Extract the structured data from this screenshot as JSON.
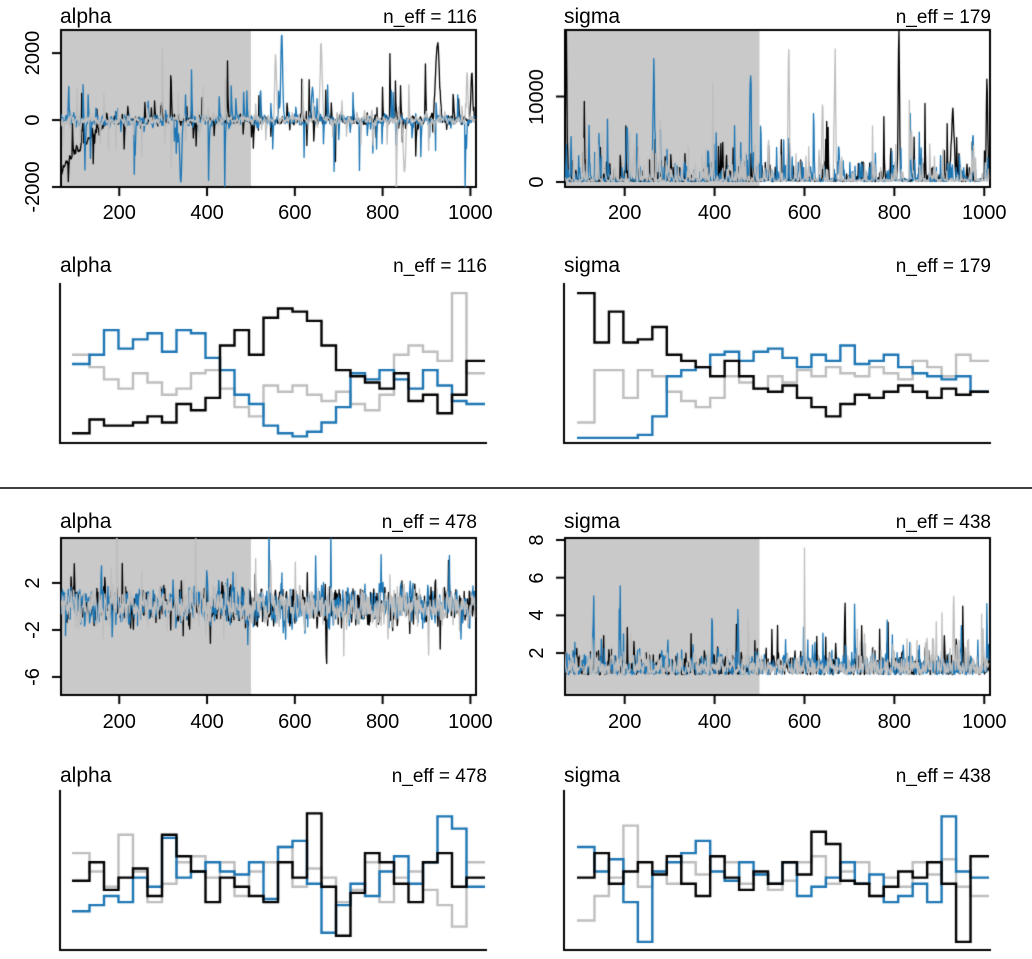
{
  "figure": {
    "background": "#ffffff",
    "divider_color": "#3f3f3f",
    "warmup_shade_color": "#c9c9c9",
    "chain_colors": {
      "chain-1": "#000000",
      "chain-2": "#1d76b4",
      "chain-3": "#bebebe"
    },
    "sections": 2,
    "description_visible_text_only": true
  },
  "chart_data": [
    {
      "id": "trace-alpha-poor",
      "type": "line",
      "plot_type": "trace",
      "title": "alpha",
      "n_eff": 116,
      "n_eff_label": "n_eff = 116",
      "x_ticks": [
        200,
        400,
        600,
        800,
        1000
      ],
      "y_ticks": [
        {
          "v": -2000,
          "label": "-2000"
        },
        {
          "v": 0,
          "label": "0"
        },
        {
          "v": 2000,
          "label": "2000"
        }
      ],
      "xlim": [
        65,
        1015
      ],
      "ylim": [
        -2030,
        2720
      ],
      "warmup_end": 500,
      "chains": [
        {
          "name": "chain-1",
          "color": "#000000",
          "seed": 101,
          "sim": {
            "ar": 0.45,
            "base": 60,
            "spike_p": 0.12,
            "spike_scale": 420
          },
          "ramp": {
            "from": -1450,
            "until": 170
          },
          "events": [
            {
              "t": 925,
              "amp": 2300,
              "w": 9
            },
            {
              "t": 1003,
              "amp": 1400,
              "w": 4
            }
          ]
        },
        {
          "name": "chain-2",
          "color": "#1d76b4",
          "seed": 102,
          "sim": {
            "ar": 0.45,
            "base": 70,
            "spike_p": 0.14,
            "spike_scale": 430
          },
          "events": [
            {
              "t": 570,
              "amp": 2600,
              "w": 4
            },
            {
              "t": 340,
              "amp": -1800,
              "w": 5
            },
            {
              "t": 640,
              "amp": 1100,
              "w": 4
            }
          ]
        },
        {
          "name": "chain-3",
          "color": "#bebebe",
          "seed": 103,
          "sim": {
            "ar": 0.45,
            "base": 60,
            "spike_p": 0.12,
            "spike_scale": 420
          },
          "events": [
            {
              "t": 556,
              "amp": 1900,
              "w": 4
            },
            {
              "t": 660,
              "amp": 1950,
              "w": 5
            },
            {
              "t": 850,
              "amp": -1750,
              "w": 5
            },
            {
              "t": 992,
              "amp": 1500,
              "w": 4
            }
          ]
        }
      ]
    },
    {
      "id": "trace-sigma-poor",
      "type": "line",
      "plot_type": "trace",
      "title": "sigma",
      "n_eff": 179,
      "n_eff_label": "n_eff = 179",
      "x_ticks": [
        200,
        400,
        600,
        800,
        1000
      ],
      "y_ticks": [
        {
          "v": 0,
          "label": "0"
        },
        {
          "v": 10000,
          "label": "10000"
        }
      ],
      "xlim": [
        65,
        1015
      ],
      "ylim": [
        -700,
        17900
      ],
      "warmup_end": 500,
      "chains": [
        {
          "name": "chain-1",
          "color": "#000000",
          "seed": 201,
          "sim": {
            "positive": true,
            "floor": 60,
            "base": 150,
            "spike_p": 0.25,
            "spike_scale": 1500
          },
          "events": [
            {
              "t": 70,
              "amp": 16800,
              "w": 3
            },
            {
              "t": 810,
              "amp": 17300,
              "w": 3
            },
            {
              "t": 930,
              "amp": 8300,
              "w": 5
            },
            {
              "t": 1006,
              "amp": 12000,
              "w": 3
            }
          ]
        },
        {
          "name": "chain-2",
          "color": "#1d76b4",
          "seed": 202,
          "sim": {
            "positive": true,
            "floor": 60,
            "base": 150,
            "spike_p": 0.25,
            "spike_scale": 1500
          },
          "events": [
            {
              "t": 265,
              "amp": 12000,
              "w": 3
            },
            {
              "t": 480,
              "amp": 12400,
              "w": 3
            },
            {
              "t": 205,
              "amp": 6300,
              "w": 4
            }
          ]
        },
        {
          "name": "chain-3",
          "color": "#bebebe",
          "seed": 203,
          "sim": {
            "positive": true,
            "floor": 60,
            "base": 150,
            "spike_p": 0.25,
            "spike_scale": 1500
          },
          "events": [
            {
              "t": 565,
              "amp": 15700,
              "w": 3
            },
            {
              "t": 668,
              "amp": 13200,
              "w": 3
            },
            {
              "t": 640,
              "amp": 8800,
              "w": 3
            },
            {
              "t": 838,
              "amp": 6000,
              "w": 3
            }
          ]
        }
      ]
    },
    {
      "id": "trank-alpha-poor",
      "type": "step-histogram",
      "plot_type": "trank",
      "title": "alpha",
      "n_eff": 116,
      "n_eff_label": "n_eff = 116",
      "bins": 28,
      "chains": [
        {
          "name": "chain-1",
          "color": "#000000",
          "heights": [
            0.05,
            0.14,
            0.1,
            0.1,
            0.12,
            0.16,
            0.12,
            0.24,
            0.2,
            0.28,
            0.62,
            0.72,
            0.56,
            0.8,
            0.86,
            0.84,
            0.78,
            0.62,
            0.46,
            0.42,
            0.38,
            0.34,
            0.44,
            0.26,
            0.3,
            0.18,
            0.3,
            0.52
          ]
        },
        {
          "name": "chain-2",
          "color": "#1d76b4",
          "heights": [
            0.5,
            0.56,
            0.72,
            0.6,
            0.66,
            0.7,
            0.58,
            0.72,
            0.7,
            0.54,
            0.46,
            0.3,
            0.24,
            0.1,
            0.05,
            0.03,
            0.06,
            0.12,
            0.22,
            0.44,
            0.4,
            0.46,
            0.4,
            0.34,
            0.46,
            0.36,
            0.26,
            0.24
          ]
        },
        {
          "name": "chain-3",
          "color": "#bebebe",
          "heights": [
            0.56,
            0.48,
            0.4,
            0.34,
            0.44,
            0.38,
            0.3,
            0.34,
            0.44,
            0.46,
            0.34,
            0.22,
            0.16,
            0.36,
            0.32,
            0.36,
            0.3,
            0.26,
            0.32,
            0.24,
            0.2,
            0.3,
            0.56,
            0.62,
            0.58,
            0.52,
            0.96,
            0.44
          ]
        }
      ]
    },
    {
      "id": "trank-sigma-poor",
      "type": "step-histogram",
      "plot_type": "trank",
      "title": "sigma",
      "n_eff": 179,
      "n_eff_label": "n_eff = 179",
      "bins": 28,
      "chains": [
        {
          "name": "chain-1",
          "color": "#000000",
          "heights": [
            0.96,
            0.64,
            0.84,
            0.64,
            0.66,
            0.74,
            0.56,
            0.52,
            0.48,
            0.42,
            0.52,
            0.42,
            0.34,
            0.32,
            0.36,
            0.28,
            0.22,
            0.16,
            0.24,
            0.3,
            0.28,
            0.32,
            0.36,
            0.32,
            0.28,
            0.34,
            0.3,
            0.32
          ]
        },
        {
          "name": "chain-2",
          "color": "#1d76b4",
          "heights": [
            0.02,
            0.02,
            0.02,
            0.02,
            0.04,
            0.16,
            0.42,
            0.46,
            0.48,
            0.56,
            0.58,
            0.52,
            0.58,
            0.6,
            0.54,
            0.48,
            0.56,
            0.52,
            0.62,
            0.5,
            0.52,
            0.56,
            0.48,
            0.44,
            0.42,
            0.4,
            0.42,
            0.32
          ]
        },
        {
          "name": "chain-3",
          "color": "#bebebe",
          "heights": [
            0.12,
            0.46,
            0.46,
            0.28,
            0.46,
            0.42,
            0.32,
            0.26,
            0.22,
            0.28,
            0.42,
            0.38,
            0.34,
            0.42,
            0.38,
            0.46,
            0.42,
            0.48,
            0.44,
            0.42,
            0.48,
            0.44,
            0.4,
            0.52,
            0.48,
            0.42,
            0.56,
            0.52
          ]
        }
      ]
    },
    {
      "id": "trace-alpha-good",
      "type": "line",
      "plot_type": "trace",
      "title": "alpha",
      "n_eff": 478,
      "n_eff_label": "n_eff = 478",
      "x_ticks": [
        200,
        400,
        600,
        800,
        1000
      ],
      "y_ticks": [
        {
          "v": -6,
          "label": "-6"
        },
        {
          "v": -2,
          "label": "-2"
        },
        {
          "v": 2,
          "label": "2"
        }
      ],
      "xlim": [
        65,
        1015
      ],
      "ylim": [
        -7.62,
        5.91
      ],
      "warmup_end": 500,
      "chains": [
        {
          "name": "chain-1",
          "color": "#000000",
          "seed": 501,
          "sim": {
            "ar": 0.3,
            "base": 0.75,
            "spike_p": 0.1,
            "spike_scale": 1.2
          },
          "events": [
            {
              "t": 672,
              "amp": -5.6,
              "w": 2
            }
          ]
        },
        {
          "name": "chain-2",
          "color": "#1d76b4",
          "seed": 502,
          "sim": {
            "ar": 0.3,
            "base": 0.75,
            "spike_p": 0.1,
            "spike_scale": 1.2
          },
          "events": [
            {
              "t": 160,
              "amp": 2.6,
              "w": 2
            },
            {
              "t": 952,
              "amp": 2.8,
              "w": 2
            }
          ]
        },
        {
          "name": "chain-3",
          "color": "#bebebe",
          "seed": 503,
          "sim": {
            "ar": 0.3,
            "base": 0.75,
            "spike_p": 0.1,
            "spike_scale": 1.2
          },
          "events": [
            {
              "t": 545,
              "amp": 2.9,
              "w": 2
            },
            {
              "t": 905,
              "amp": -3.0,
              "w": 2
            }
          ]
        }
      ]
    },
    {
      "id": "trace-sigma-good",
      "type": "line",
      "plot_type": "trace",
      "title": "sigma",
      "n_eff": 438,
      "n_eff_label": "n_eff = 438",
      "x_ticks": [
        200,
        400,
        600,
        800,
        1000
      ],
      "y_ticks": [
        {
          "v": 2,
          "label": "2"
        },
        {
          "v": 4,
          "label": "4"
        },
        {
          "v": 6,
          "label": "6"
        },
        {
          "v": 8,
          "label": "8"
        }
      ],
      "xlim": [
        65,
        1015
      ],
      "ylim": [
        -0.28,
        8.16
      ],
      "warmup_end": 500,
      "chains": [
        {
          "name": "chain-1",
          "color": "#000000",
          "seed": 601,
          "sim": {
            "positive": true,
            "floor": 0.85,
            "base": 0.45,
            "spike_p": 0.12,
            "spike_scale": 0.85
          },
          "events": [
            {
              "t": 690,
              "amp": 3.4,
              "w": 2
            }
          ]
        },
        {
          "name": "chain-2",
          "color": "#1d76b4",
          "seed": 602,
          "sim": {
            "positive": true,
            "floor": 0.85,
            "base": 0.45,
            "spike_p": 0.12,
            "spike_scale": 0.85
          },
          "events": [
            {
              "t": 452,
              "amp": 3.2,
              "w": 2
            },
            {
              "t": 130,
              "amp": 2.6,
              "w": 2
            }
          ]
        },
        {
          "name": "chain-3",
          "color": "#bebebe",
          "seed": 603,
          "sim": {
            "positive": true,
            "floor": 0.85,
            "base": 0.45,
            "spike_p": 0.12,
            "spike_scale": 0.85
          },
          "events": [
            {
              "t": 932,
              "amp": 3.6,
              "w": 2
            }
          ]
        }
      ]
    },
    {
      "id": "trank-alpha-good",
      "type": "step-histogram",
      "plot_type": "trank",
      "title": "alpha",
      "n_eff": 478,
      "n_eff_label": "n_eff = 478",
      "bins": 28,
      "chains": [
        {
          "name": "chain-1",
          "color": "#000000",
          "heights": [
            0.44,
            0.56,
            0.38,
            0.46,
            0.52,
            0.34,
            0.74,
            0.6,
            0.5,
            0.3,
            0.46,
            0.4,
            0.34,
            0.3,
            0.56,
            0.46,
            0.88,
            0.4,
            0.08,
            0.36,
            0.62,
            0.56,
            0.42,
            0.3,
            0.56,
            0.62,
            0.4,
            0.46
          ]
        },
        {
          "name": "chain-2",
          "color": "#1d76b4",
          "heights": [
            0.24,
            0.28,
            0.34,
            0.3,
            0.46,
            0.4,
            0.72,
            0.46,
            0.5,
            0.56,
            0.5,
            0.48,
            0.56,
            0.32,
            0.66,
            0.7,
            0.42,
            0.1,
            0.28,
            0.42,
            0.34,
            0.5,
            0.6,
            0.42,
            0.56,
            0.86,
            0.78,
            0.4
          ]
        },
        {
          "name": "chain-3",
          "color": "#bebebe",
          "heights": [
            0.62,
            0.5,
            0.4,
            0.74,
            0.5,
            0.3,
            0.42,
            0.56,
            0.6,
            0.46,
            0.56,
            0.34,
            0.5,
            0.56,
            0.66,
            0.4,
            0.52,
            0.46,
            0.3,
            0.38,
            0.56,
            0.3,
            0.46,
            0.5,
            0.38,
            0.28,
            0.14,
            0.56
          ]
        }
      ]
    },
    {
      "id": "trank-sigma-good",
      "type": "step-histogram",
      "plot_type": "trank",
      "title": "sigma",
      "n_eff": 438,
      "n_eff_label": "n_eff = 438",
      "bins": 28,
      "chains": [
        {
          "name": "chain-1",
          "color": "#000000",
          "heights": [
            0.46,
            0.62,
            0.42,
            0.5,
            0.56,
            0.48,
            0.6,
            0.42,
            0.34,
            0.6,
            0.46,
            0.38,
            0.5,
            0.42,
            0.56,
            0.48,
            0.76,
            0.68,
            0.44,
            0.42,
            0.34,
            0.4,
            0.5,
            0.46,
            0.56,
            0.42,
            0.04,
            0.6
          ]
        },
        {
          "name": "chain-2",
          "color": "#1d76b4",
          "heights": [
            0.66,
            0.5,
            0.58,
            0.3,
            0.04,
            0.5,
            0.56,
            0.62,
            0.7,
            0.5,
            0.44,
            0.56,
            0.48,
            0.42,
            0.56,
            0.34,
            0.4,
            0.46,
            0.56,
            0.42,
            0.48,
            0.3,
            0.34,
            0.42,
            0.3,
            0.86,
            0.5,
            0.46
          ]
        },
        {
          "name": "chain-3",
          "color": "#bebebe",
          "heights": [
            0.18,
            0.34,
            0.46,
            0.8,
            0.4,
            0.5,
            0.42,
            0.56,
            0.48,
            0.6,
            0.56,
            0.42,
            0.48,
            0.38,
            0.44,
            0.56,
            0.6,
            0.42,
            0.5,
            0.56,
            0.34,
            0.46,
            0.4,
            0.56,
            0.48,
            0.58,
            0.4,
            0.34
          ]
        }
      ]
    }
  ]
}
